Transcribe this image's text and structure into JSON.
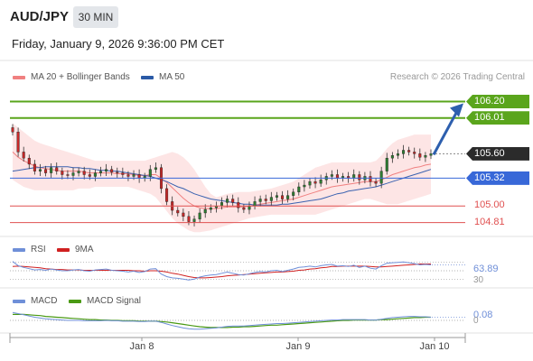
{
  "header": {
    "symbol": "AUD/JPY",
    "interval": "30 MIN",
    "datetime": "Friday, January 9, 2026 9:36:00 PM CET"
  },
  "legend": {
    "ma20": "MA 20 + Bollinger Bands",
    "ma50": "MA 50",
    "credit": "Research © 2026 Trading Central"
  },
  "levels": [
    {
      "label": "106.20",
      "value": 106.2,
      "kind": "resistance"
    },
    {
      "label": "106.01",
      "value": 106.01,
      "kind": "resistance"
    },
    {
      "label": "105.60",
      "value": 105.6,
      "kind": "last"
    },
    {
      "label": "105.32",
      "value": 105.32,
      "kind": "pivot"
    },
    {
      "label": "105.00",
      "value": 105.0,
      "kind": "support"
    },
    {
      "label": "104.81",
      "value": 104.81,
      "kind": "support"
    }
  ],
  "rsi": {
    "label": "RSI",
    "ma_label": "9MA",
    "value_label": "63.89",
    "level_label": "30"
  },
  "macd": {
    "label": "MACD",
    "signal_label": "MACD Signal",
    "value_label": "0.08",
    "level_label": "0"
  },
  "x_axis": {
    "ticks": [
      "Jan 8",
      "Jan 9",
      "Jan 10"
    ]
  },
  "colors": {
    "resistance": "#5aa51c",
    "pivot": "#3868d8",
    "support": "#e05050",
    "last": "#2b2b2b",
    "arrow": "#2d5fae",
    "ma20": "#f08080",
    "ma50": "#3a62b0",
    "band": "#fde0e0",
    "up": "#2e7d32",
    "down": "#c62828",
    "rsi": "#6f8fd8",
    "rsi_ma": "#d02020",
    "macd": "#6f8fd8",
    "macd_signal": "#4a9a14"
  },
  "chart_data": {
    "type": "candlestick",
    "ylim": [
      104.65,
      106.35
    ],
    "close": [
      105.85,
      105.62,
      105.55,
      105.48,
      105.4,
      105.42,
      105.38,
      105.44,
      105.4,
      105.36,
      105.35,
      105.38,
      105.4,
      105.36,
      105.34,
      105.38,
      105.4,
      105.42,
      105.39,
      105.38,
      105.36,
      105.34,
      105.36,
      105.32,
      105.34,
      105.42,
      105.44,
      105.2,
      105.05,
      104.95,
      104.92,
      104.88,
      104.82,
      104.85,
      104.92,
      104.96,
      104.98,
      105.0,
      105.04,
      105.08,
      105.04,
      104.98,
      104.96,
      105.0,
      105.05,
      105.08,
      105.06,
      105.1,
      105.12,
      105.08,
      105.12,
      105.16,
      105.22,
      105.24,
      105.28,
      105.26,
      105.3,
      105.34,
      105.36,
      105.32,
      105.34,
      105.32,
      105.36,
      105.3,
      105.34,
      105.28,
      105.26,
      105.4,
      105.55,
      105.58,
      105.6,
      105.64,
      105.62,
      105.6,
      105.56,
      105.58,
      105.6
    ],
    "ma20": [
      105.62,
      105.56,
      105.52,
      105.49,
      105.46,
      105.44,
      105.43,
      105.42,
      105.41,
      105.4,
      105.4,
      105.4,
      105.4,
      105.39,
      105.38,
      105.38,
      105.38,
      105.38,
      105.38,
      105.37,
      105.37,
      105.37,
      105.36,
      105.35,
      105.35,
      105.36,
      105.36,
      105.32,
      105.27,
      105.21,
      105.15,
      105.09,
      105.04,
      105.0,
      104.98,
      104.97,
      104.97,
      104.97,
      104.98,
      104.99,
      104.99,
      104.99,
      104.99,
      105.0,
      105.01,
      105.02,
      105.03,
      105.04,
      105.05,
      105.06,
      105.07,
      105.08,
      105.1,
      105.12,
      105.14,
      105.16,
      105.18,
      105.2,
      105.22,
      105.23,
      105.24,
      105.25,
      105.26,
      105.27,
      105.28,
      105.28,
      105.28,
      105.3,
      105.33,
      105.36,
      105.38,
      105.4,
      105.42,
      105.44,
      105.45,
      105.47,
      105.48
    ],
    "ma50": [
      105.4,
      105.41,
      105.42,
      105.43,
      105.44,
      105.44,
      105.45,
      105.45,
      105.45,
      105.45,
      105.45,
      105.44,
      105.44,
      105.43,
      105.43,
      105.42,
      105.41,
      105.41,
      105.4,
      105.4,
      105.39,
      105.38,
      105.37,
      105.36,
      105.35,
      105.34,
      105.32,
      105.3,
      105.28,
      105.25,
      105.22,
      105.2,
      105.17,
      105.14,
      105.12,
      105.1,
      105.08,
      105.07,
      105.06,
      105.05,
      105.04,
      105.03,
      105.02,
      105.02,
      105.01,
      105.01,
      105.01,
      105.01,
      105.01,
      105.02,
      105.02,
      105.03,
      105.04,
      105.05,
      105.06,
      105.07,
      105.08,
      105.1,
      105.12,
      105.14,
      105.15,
      105.17,
      105.18,
      105.19,
      105.2,
      105.21,
      105.22,
      105.24,
      105.26,
      105.28,
      105.3,
      105.32,
      105.34,
      105.36,
      105.38,
      105.4,
      105.42
    ],
    "bb_upper": [
      105.95,
      105.9,
      105.85,
      105.8,
      105.75,
      105.72,
      105.7,
      105.68,
      105.66,
      105.64,
      105.62,
      105.6,
      105.58,
      105.56,
      105.54,
      105.52,
      105.52,
      105.52,
      105.52,
      105.52,
      105.52,
      105.52,
      105.52,
      105.52,
      105.52,
      105.54,
      105.56,
      105.58,
      105.6,
      105.62,
      105.6,
      105.56,
      105.5,
      105.42,
      105.32,
      105.22,
      105.14,
      105.1,
      105.12,
      105.14,
      105.15,
      105.16,
      105.16,
      105.16,
      105.17,
      105.18,
      105.19,
      105.2,
      105.22,
      105.24,
      105.26,
      105.28,
      105.32,
      105.36,
      105.4,
      105.44,
      105.46,
      105.48,
      105.5,
      105.5,
      105.5,
      105.5,
      105.5,
      105.5,
      105.5,
      105.5,
      105.52,
      105.58,
      105.66,
      105.72,
      105.76,
      105.78,
      105.8,
      105.82,
      105.82,
      105.82,
      105.82
    ],
    "bb_lower": [
      105.3,
      105.26,
      105.22,
      105.2,
      105.18,
      105.18,
      105.18,
      105.18,
      105.18,
      105.18,
      105.18,
      105.18,
      105.2,
      105.2,
      105.2,
      105.22,
      105.22,
      105.22,
      105.22,
      105.22,
      105.22,
      105.22,
      105.2,
      105.18,
      105.16,
      105.14,
      105.1,
      105.02,
      104.94,
      104.86,
      104.8,
      104.76,
      104.72,
      104.7,
      104.7,
      104.71,
      104.72,
      104.74,
      104.76,
      104.78,
      104.8,
      104.82,
      104.84,
      104.86,
      104.87,
      104.88,
      104.89,
      104.9,
      104.9,
      104.9,
      104.9,
      104.9,
      104.9,
      104.9,
      104.9,
      104.9,
      104.92,
      104.94,
      104.96,
      104.98,
      105.0,
      105.02,
      105.04,
      105.06,
      105.08,
      105.08,
      105.06,
      105.04,
      105.02,
      105.02,
      105.02,
      105.04,
      105.06,
      105.08,
      105.1,
      105.12,
      105.14
    ],
    "rsi": [
      72,
      62,
      58,
      55,
      52,
      53,
      51,
      54,
      52,
      50,
      50,
      52,
      53,
      50,
      49,
      52,
      53,
      54,
      51,
      50,
      49,
      47,
      49,
      46,
      48,
      54,
      55,
      42,
      36,
      33,
      32,
      30,
      28,
      30,
      35,
      38,
      40,
      41,
      44,
      47,
      44,
      41,
      40,
      43,
      46,
      48,
      47,
      50,
      51,
      48,
      51,
      54,
      58,
      59,
      61,
      59,
      62,
      64,
      65,
      61,
      62,
      60,
      63,
      58,
      61,
      56,
      54,
      62,
      68,
      69,
      70,
      71,
      69,
      67,
      64,
      65,
      64
    ],
    "rsi_ma": [
      60,
      61,
      60,
      59,
      58,
      57,
      55,
      54,
      53,
      53,
      52,
      52,
      52,
      51,
      51,
      51,
      51,
      51,
      51,
      51,
      51,
      51,
      50,
      50,
      49,
      50,
      50,
      49,
      47,
      44,
      42,
      39,
      36,
      34,
      33,
      33,
      34,
      35,
      36,
      38,
      39,
      40,
      41,
      42,
      43,
      44,
      45,
      46,
      47,
      47,
      48,
      49,
      51,
      52,
      54,
      55,
      57,
      58,
      60,
      60,
      61,
      61,
      61,
      61,
      61,
      60,
      59,
      59,
      60,
      61,
      62,
      63,
      64,
      65,
      66,
      66,
      66
    ],
    "macd": [
      0.2,
      0.17,
      0.14,
      0.11,
      0.08,
      0.06,
      0.04,
      0.03,
      0.02,
      0.01,
      0.0,
      0.0,
      0.0,
      -0.01,
      -0.01,
      -0.01,
      -0.01,
      0.0,
      -0.01,
      -0.01,
      -0.02,
      -0.02,
      -0.02,
      -0.03,
      -0.03,
      -0.02,
      -0.02,
      -0.05,
      -0.09,
      -0.13,
      -0.16,
      -0.19,
      -0.21,
      -0.22,
      -0.22,
      -0.21,
      -0.2,
      -0.19,
      -0.17,
      -0.15,
      -0.14,
      -0.14,
      -0.14,
      -0.13,
      -0.12,
      -0.11,
      -0.1,
      -0.09,
      -0.08,
      -0.08,
      -0.07,
      -0.06,
      -0.05,
      -0.04,
      -0.03,
      -0.02,
      -0.01,
      0.0,
      0.01,
      0.01,
      0.02,
      0.02,
      0.02,
      0.02,
      0.02,
      0.01,
      0.01,
      0.03,
      0.05,
      0.07,
      0.08,
      0.09,
      0.1,
      0.1,
      0.09,
      0.09,
      0.08
    ],
    "macd_signal": [
      0.15,
      0.15,
      0.15,
      0.14,
      0.13,
      0.12,
      0.1,
      0.09,
      0.08,
      0.07,
      0.06,
      0.05,
      0.04,
      0.03,
      0.02,
      0.02,
      0.01,
      0.01,
      0.0,
      0.0,
      -0.01,
      -0.01,
      -0.01,
      -0.02,
      -0.02,
      -0.02,
      -0.02,
      -0.03,
      -0.04,
      -0.06,
      -0.08,
      -0.1,
      -0.12,
      -0.14,
      -0.16,
      -0.17,
      -0.18,
      -0.18,
      -0.18,
      -0.18,
      -0.17,
      -0.17,
      -0.16,
      -0.16,
      -0.15,
      -0.14,
      -0.13,
      -0.12,
      -0.12,
      -0.11,
      -0.1,
      -0.09,
      -0.08,
      -0.07,
      -0.06,
      -0.05,
      -0.04,
      -0.03,
      -0.02,
      -0.01,
      0.0,
      0.0,
      0.01,
      0.01,
      0.01,
      0.01,
      0.01,
      0.02,
      0.02,
      0.03,
      0.04,
      0.05,
      0.06,
      0.07,
      0.07,
      0.08,
      0.08
    ]
  }
}
